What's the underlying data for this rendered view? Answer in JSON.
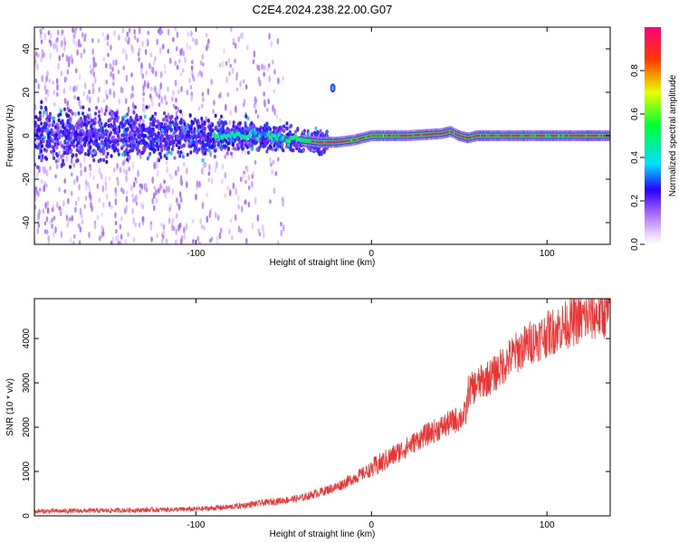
{
  "title": "C2E4.2024.238.22.00.G07",
  "chart_data": [
    {
      "type": "heatmap",
      "xlabel": "Height of straight line (km)",
      "ylabel": "Frequency (Hz)",
      "xlim": [
        -192,
        136
      ],
      "ylim": [
        -50,
        50
      ],
      "x_ticks": [
        -100,
        0,
        100
      ],
      "y_ticks": [
        -40,
        -20,
        0,
        20,
        40
      ],
      "grid": false,
      "colorbar": {
        "label": "Normalized spectral amplitude",
        "range": [
          0,
          1
        ],
        "ticks": [
          0.0,
          0.2,
          0.4,
          0.6,
          0.8
        ]
      },
      "ridge": {
        "description": "dominant frequency track",
        "x": [
          -192,
          -150,
          -100,
          -60,
          -40,
          -30,
          -20,
          -10,
          0,
          10,
          20,
          40,
          45,
          50,
          55,
          60,
          80,
          100,
          120,
          136
        ],
        "freq": [
          0,
          0,
          0,
          0,
          -2,
          -3,
          -3,
          -2,
          0,
          0,
          0,
          1,
          2,
          0,
          -1,
          0,
          0,
          0,
          0,
          0
        ]
      },
      "blobs": [
        {
          "x": -22,
          "freq": 22,
          "amp": 0.35
        }
      ]
    },
    {
      "type": "line",
      "xlabel": "Height of straight line (km)",
      "ylabel": "SNR (10 * v/v)",
      "xlim": [
        -192,
        136
      ],
      "ylim": [
        0,
        4900
      ],
      "x_ticks": [
        -100,
        0,
        100
      ],
      "y_ticks": [
        0,
        1000,
        2000,
        3000,
        4000
      ],
      "color": "#ee3333",
      "series": [
        {
          "x": [
            -192,
            -150,
            -100,
            -80,
            -60,
            -40,
            -20,
            0,
            10,
            20,
            30,
            40,
            50,
            54,
            55,
            60,
            70,
            80,
            90,
            100,
            110,
            120,
            136
          ],
          "values": [
            100,
            120,
            150,
            200,
            300,
            400,
            650,
            1050,
            1300,
            1550,
            1800,
            2000,
            2200,
            2300,
            2800,
            2950,
            3200,
            3600,
            3900,
            4100,
            4300,
            4450,
            4600
          ]
        }
      ]
    }
  ]
}
